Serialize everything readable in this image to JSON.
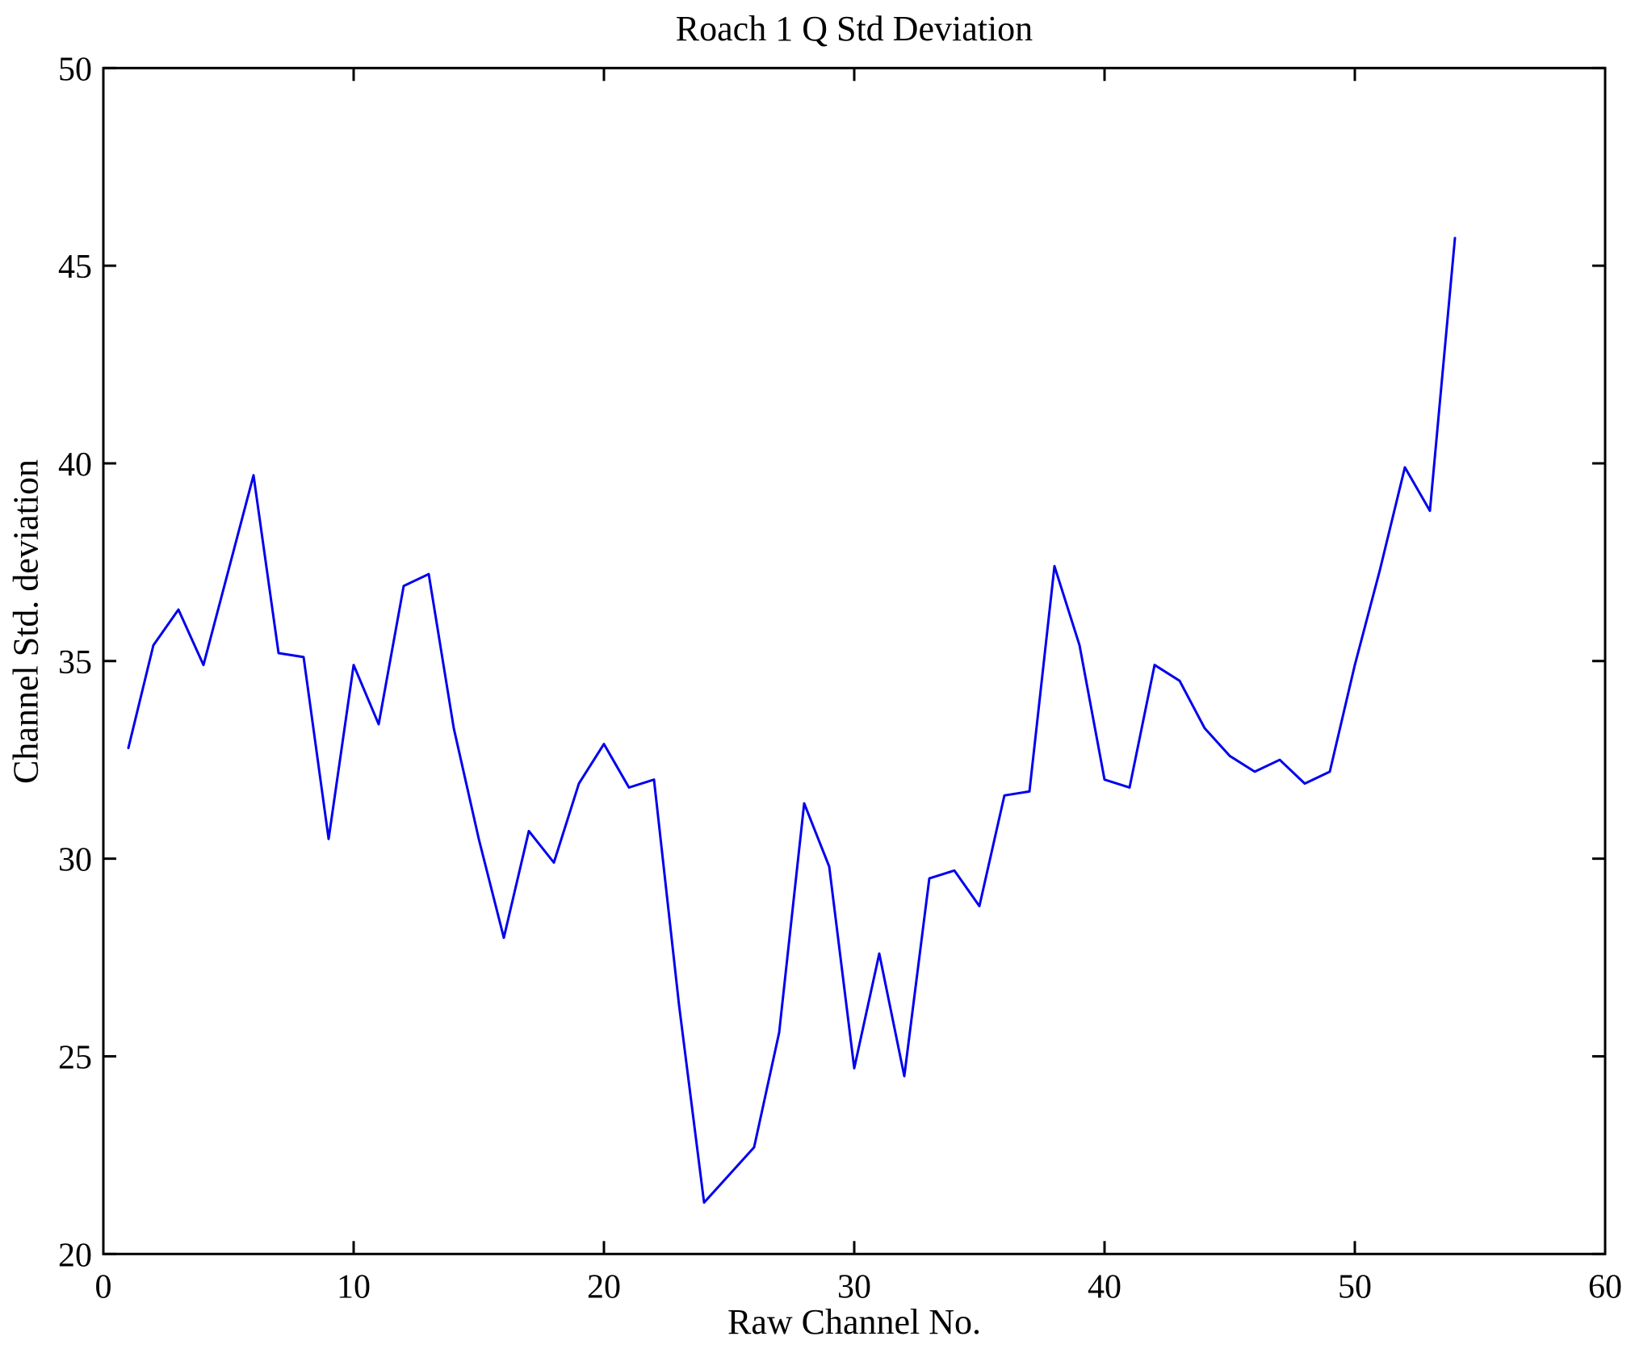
{
  "chart_data": {
    "type": "line",
    "title": "Roach 1 Q Std Deviation",
    "xlabel": "Raw Channel No.",
    "ylabel": "Channel Std. deviation",
    "xlim": [
      0,
      60
    ],
    "ylim": [
      20,
      50
    ],
    "xticks": [
      0,
      10,
      20,
      30,
      40,
      50,
      60
    ],
    "yticks": [
      20,
      25,
      30,
      35,
      40,
      45,
      50
    ],
    "grid": "off",
    "legend": "none",
    "line_color": "#0000ee",
    "axis_color": "#000000",
    "x": [
      1,
      2,
      3,
      4,
      5,
      6,
      7,
      8,
      9,
      10,
      11,
      12,
      13,
      14,
      15,
      16,
      17,
      18,
      19,
      20,
      21,
      22,
      23,
      24,
      25,
      26,
      27,
      28,
      29,
      30,
      31,
      32,
      33,
      34,
      35,
      36,
      37,
      38,
      39,
      40,
      41,
      42,
      43,
      44,
      45,
      46,
      47,
      48,
      49,
      50,
      51,
      52,
      53,
      54
    ],
    "values": [
      32.8,
      35.4,
      36.3,
      34.9,
      37.3,
      39.7,
      35.2,
      35.1,
      30.5,
      34.9,
      33.4,
      36.9,
      37.2,
      33.3,
      30.5,
      28.0,
      30.7,
      29.9,
      31.9,
      32.9,
      31.8,
      32.0,
      26.3,
      21.3,
      22.0,
      22.7,
      25.6,
      31.4,
      29.8,
      24.7,
      27.6,
      24.5,
      29.5,
      29.7,
      28.8,
      31.6,
      31.7,
      37.4,
      35.4,
      32.0,
      31.8,
      34.9,
      34.5,
      33.3,
      32.6,
      32.2,
      32.5,
      31.9,
      32.2,
      34.9,
      37.3,
      39.9,
      38.8,
      45.7
    ]
  }
}
